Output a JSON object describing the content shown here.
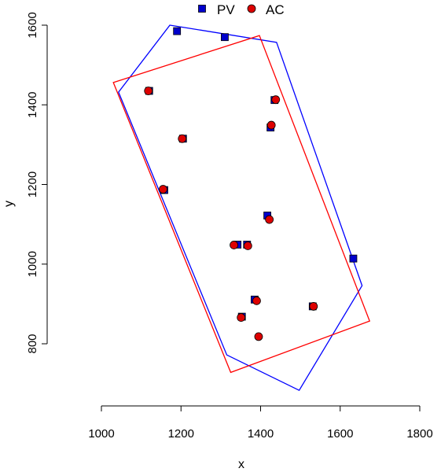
{
  "chart_data": {
    "type": "scatter",
    "title": "",
    "xlabel": "x",
    "ylabel": "y",
    "xlim": [
      1000,
      1800
    ],
    "ylim": [
      700,
      1600
    ],
    "xticks": [
      1000,
      1200,
      1400,
      1600,
      1800
    ],
    "yticks": [
      800,
      1000,
      1200,
      1400,
      1600
    ],
    "grid": false,
    "legend_position": "top",
    "series": [
      {
        "name": "PV",
        "marker": "square",
        "color": "#0000cc",
        "points": [
          [
            1190,
            1585
          ],
          [
            1310,
            1570
          ],
          [
            1120,
            1435
          ],
          [
            1435,
            1412
          ],
          [
            1425,
            1343
          ],
          [
            1205,
            1315
          ],
          [
            1158,
            1186
          ],
          [
            1417,
            1122
          ],
          [
            1633,
            1014
          ],
          [
            1342,
            1049
          ],
          [
            1366,
            1049
          ],
          [
            1385,
            911
          ],
          [
            1353,
            868
          ],
          [
            1531,
            894
          ]
        ],
        "hull": [
          [
            1172,
            1600
          ],
          [
            1440,
            1557
          ],
          [
            1655,
            946
          ],
          [
            1497,
            683
          ],
          [
            1315,
            772
          ],
          [
            1043,
            1432
          ]
        ],
        "hull_color": "#0000ff"
      },
      {
        "name": "AC",
        "marker": "circle",
        "color": "#dd0000",
        "points": [
          [
            1118,
            1435
          ],
          [
            1438,
            1413
          ],
          [
            1427,
            1349
          ],
          [
            1203,
            1315
          ],
          [
            1155,
            1188
          ],
          [
            1422,
            1112
          ],
          [
            1333,
            1048
          ],
          [
            1368,
            1046
          ],
          [
            1390,
            908
          ],
          [
            1351,
            866
          ],
          [
            1533,
            894
          ],
          [
            1395,
            818
          ]
        ],
        "hull": [
          [
            1030,
            1456
          ],
          [
            1397,
            1574
          ],
          [
            1674,
            857
          ],
          [
            1325,
            728
          ]
        ],
        "hull_color": "#ff0000"
      }
    ]
  }
}
